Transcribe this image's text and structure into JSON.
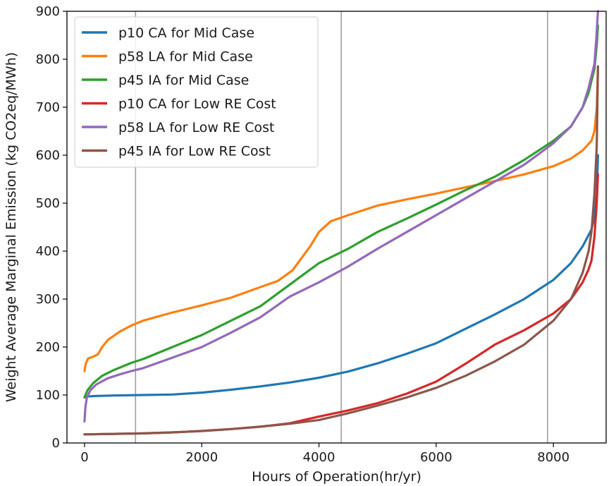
{
  "chart_data": {
    "type": "line",
    "title": "",
    "xlabel": "Hours of Operation(hr/yr)",
    "ylabel": "Weight Average Marginal Emission (kg CO2eq/MWh)",
    "xlim": [
      -300,
      8900
    ],
    "ylim": [
      0,
      900
    ],
    "xticks": [
      0,
      2000,
      4000,
      6000,
      8000
    ],
    "yticks": [
      0,
      100,
      200,
      300,
      400,
      500,
      600,
      700,
      800,
      900
    ],
    "vlines": [
      870,
      4380,
      7900
    ],
    "grid": false,
    "legend_position": "top-left",
    "series": [
      {
        "name": "p10 CA for Mid Case",
        "color": "#1f77b4",
        "points": [
          [
            0,
            95
          ],
          [
            50,
            97
          ],
          [
            200,
            98
          ],
          [
            500,
            99
          ],
          [
            1000,
            100
          ],
          [
            1500,
            101
          ],
          [
            2000,
            105
          ],
          [
            2500,
            111
          ],
          [
            3000,
            118
          ],
          [
            3500,
            126
          ],
          [
            4000,
            136
          ],
          [
            4500,
            149
          ],
          [
            5000,
            166
          ],
          [
            5500,
            186
          ],
          [
            6000,
            208
          ],
          [
            6500,
            238
          ],
          [
            7000,
            268
          ],
          [
            7500,
            300
          ],
          [
            8000,
            340
          ],
          [
            8300,
            375
          ],
          [
            8500,
            410
          ],
          [
            8650,
            445
          ],
          [
            8700,
            470
          ],
          [
            8740,
            520
          ],
          [
            8760,
            600
          ]
        ]
      },
      {
        "name": "p58 LA for Mid Case",
        "color": "#ff7f0e",
        "points": [
          [
            0,
            150
          ],
          [
            20,
            165
          ],
          [
            60,
            176
          ],
          [
            150,
            180
          ],
          [
            230,
            185
          ],
          [
            300,
            200
          ],
          [
            400,
            215
          ],
          [
            600,
            232
          ],
          [
            800,
            245
          ],
          [
            1000,
            255
          ],
          [
            1500,
            272
          ],
          [
            2000,
            287
          ],
          [
            2500,
            303
          ],
          [
            3000,
            325
          ],
          [
            3300,
            338
          ],
          [
            3550,
            360
          ],
          [
            3700,
            385
          ],
          [
            3850,
            410
          ],
          [
            4000,
            440
          ],
          [
            4200,
            462
          ],
          [
            4500,
            475
          ],
          [
            5000,
            495
          ],
          [
            5500,
            508
          ],
          [
            6000,
            520
          ],
          [
            6500,
            533
          ],
          [
            7000,
            546
          ],
          [
            7500,
            560
          ],
          [
            8000,
            577
          ],
          [
            8300,
            593
          ],
          [
            8500,
            610
          ],
          [
            8650,
            630
          ],
          [
            8700,
            650
          ],
          [
            8740,
            700
          ],
          [
            8760,
            785
          ]
        ]
      },
      {
        "name": "p45 IA for Mid Case",
        "color": "#2ca02c",
        "points": [
          [
            0,
            95
          ],
          [
            50,
            110
          ],
          [
            150,
            125
          ],
          [
            300,
            140
          ],
          [
            500,
            152
          ],
          [
            800,
            167
          ],
          [
            1000,
            175
          ],
          [
            1500,
            200
          ],
          [
            2000,
            225
          ],
          [
            2500,
            255
          ],
          [
            3000,
            285
          ],
          [
            3500,
            330
          ],
          [
            4000,
            375
          ],
          [
            4500,
            405
          ],
          [
            5000,
            440
          ],
          [
            5500,
            468
          ],
          [
            6000,
            497
          ],
          [
            6500,
            527
          ],
          [
            7000,
            555
          ],
          [
            7500,
            590
          ],
          [
            8000,
            630
          ],
          [
            8300,
            660
          ],
          [
            8500,
            700
          ],
          [
            8600,
            730
          ],
          [
            8700,
            780
          ],
          [
            8740,
            830
          ],
          [
            8760,
            870
          ]
        ]
      },
      {
        "name": "p10 CA for Low RE Cost",
        "color": "#d62728",
        "points": [
          [
            0,
            18
          ],
          [
            500,
            19
          ],
          [
            1000,
            20
          ],
          [
            1500,
            22
          ],
          [
            2000,
            25
          ],
          [
            2500,
            29
          ],
          [
            3000,
            34
          ],
          [
            3500,
            41
          ],
          [
            4000,
            55
          ],
          [
            4500,
            68
          ],
          [
            5000,
            83
          ],
          [
            5500,
            103
          ],
          [
            6000,
            128
          ],
          [
            6500,
            165
          ],
          [
            7000,
            205
          ],
          [
            7500,
            235
          ],
          [
            8000,
            270
          ],
          [
            8300,
            300
          ],
          [
            8500,
            335
          ],
          [
            8600,
            362
          ],
          [
            8650,
            380
          ],
          [
            8700,
            430
          ],
          [
            8740,
            500
          ],
          [
            8760,
            560
          ]
        ]
      },
      {
        "name": "p58 LA for Low RE Cost",
        "color": "#9467bd",
        "points": [
          [
            0,
            45
          ],
          [
            15,
            75
          ],
          [
            40,
            95
          ],
          [
            100,
            110
          ],
          [
            200,
            122
          ],
          [
            400,
            135
          ],
          [
            600,
            143
          ],
          [
            800,
            150
          ],
          [
            1000,
            156
          ],
          [
            1500,
            178
          ],
          [
            2000,
            200
          ],
          [
            2500,
            230
          ],
          [
            3000,
            262
          ],
          [
            3500,
            305
          ],
          [
            4000,
            335
          ],
          [
            4500,
            368
          ],
          [
            5000,
            405
          ],
          [
            5500,
            440
          ],
          [
            6000,
            475
          ],
          [
            6500,
            510
          ],
          [
            7000,
            545
          ],
          [
            7500,
            580
          ],
          [
            8000,
            625
          ],
          [
            8300,
            660
          ],
          [
            8500,
            700
          ],
          [
            8600,
            740
          ],
          [
            8700,
            790
          ],
          [
            8730,
            840
          ],
          [
            8760,
            900
          ]
        ]
      },
      {
        "name": "p45 IA for Low RE Cost",
        "color": "#8c564b",
        "points": [
          [
            0,
            18
          ],
          [
            500,
            19
          ],
          [
            1000,
            20
          ],
          [
            1500,
            22
          ],
          [
            2000,
            25
          ],
          [
            2500,
            29
          ],
          [
            3000,
            34
          ],
          [
            3500,
            40
          ],
          [
            4000,
            48
          ],
          [
            4500,
            62
          ],
          [
            5000,
            78
          ],
          [
            5500,
            95
          ],
          [
            6000,
            115
          ],
          [
            6500,
            140
          ],
          [
            7000,
            170
          ],
          [
            7500,
            205
          ],
          [
            8000,
            255
          ],
          [
            8300,
            300
          ],
          [
            8500,
            355
          ],
          [
            8600,
            400
          ],
          [
            8650,
            440
          ],
          [
            8700,
            520
          ],
          [
            8740,
            620
          ],
          [
            8760,
            785
          ]
        ]
      }
    ]
  }
}
